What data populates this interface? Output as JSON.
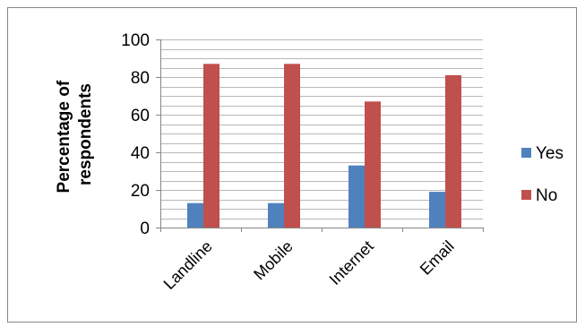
{
  "chart_data": {
    "type": "bar",
    "categories": [
      "Landline",
      "Mobile",
      "Internet",
      "Email"
    ],
    "series": [
      {
        "name": "Yes",
        "values": [
          13,
          13,
          33,
          19
        ],
        "color": "#4F81BD"
      },
      {
        "name": "No",
        "values": [
          87,
          87,
          67,
          81
        ],
        "color": "#C0504D"
      }
    ],
    "ylabel": "Percentage of respondents",
    "ylabel_lines": [
      "Percentage of",
      "respondents"
    ],
    "ylim": [
      0,
      100
    ],
    "yticks": [
      0,
      20,
      40,
      60,
      80,
      100
    ],
    "minor_gridlines": true,
    "legend_position": "right"
  }
}
